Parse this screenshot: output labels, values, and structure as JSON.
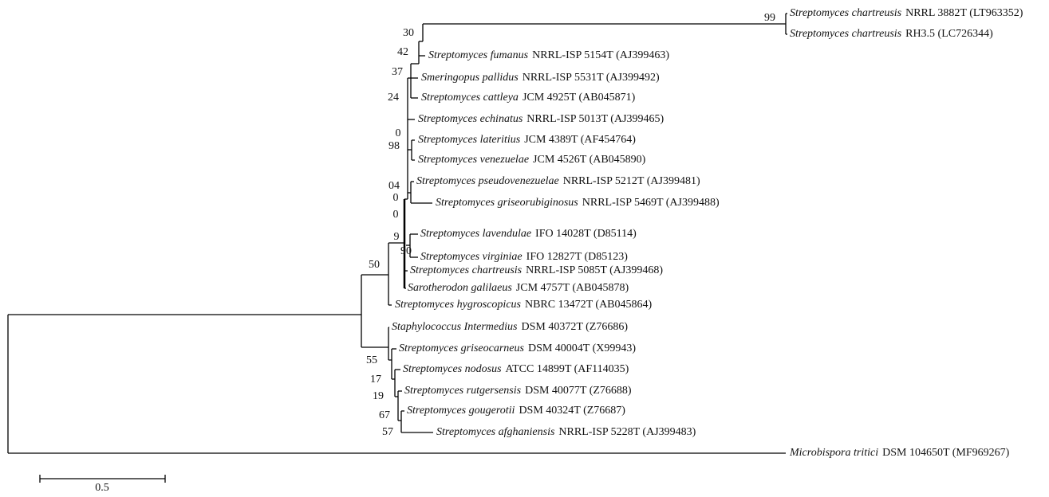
{
  "tree": {
    "leaves": [
      {
        "name": "Streptomyces chartreusis",
        "strain": "NRRL 3882T (LT963352)"
      },
      {
        "name": "Streptomyces chartreusis",
        "strain": "RH3.5 (LC726344)"
      },
      {
        "name": "Streptomyces fumanus",
        "strain": "NRRL-ISP 5154T (AJ399463)"
      },
      {
        "name": "Smeringopus pallidus",
        "strain": "NRRL-ISP 5531T (AJ399492)"
      },
      {
        "name": "Streptomyces cattleya",
        "strain": "JCM 4925T (AB045871)"
      },
      {
        "name": "Streptomyces echinatus",
        "strain": "NRRL-ISP 5013T (AJ399465)"
      },
      {
        "name": "Streptomyces lateritius",
        "strain": "JCM 4389T (AF454764)"
      },
      {
        "name": "Streptomyces venezuelae",
        "strain": "JCM 4526T (AB045890)"
      },
      {
        "name": "Streptomyces pseudovenezuelae",
        "strain": "NRRL-ISP 5212T (AJ399481)"
      },
      {
        "name": "Streptomyces griseorubiginosus",
        "strain": "NRRL-ISP 5469T (AJ399488)"
      },
      {
        "name": "Streptomyces lavendulae",
        "strain": "IFO 14028T (D85114)"
      },
      {
        "name": "Streptomyces virginiae",
        "strain": "IFO 12827T (D85123)"
      },
      {
        "name": "Streptomyces chartreusis",
        "strain": "NRRL-ISP 5085T (AJ399468)"
      },
      {
        "name": "Sarotherodon galilaeus",
        "strain": "JCM 4757T (AB045878)"
      },
      {
        "name": "Streptomyces hygroscopicus",
        "strain": "NBRC 13472T (AB045864)"
      },
      {
        "name": "Staphylococcus Intermedius",
        "strain": "DSM 40372T (Z76686)"
      },
      {
        "name": "Streptomyces griseocarneus",
        "strain": "DSM 40004T (X99943)"
      },
      {
        "name": "Streptomyces nodosus",
        "strain": "ATCC 14899T (AF114035)"
      },
      {
        "name": "Streptomyces rutgersensis",
        "strain": "DSM 40077T (Z76688)"
      },
      {
        "name": "Streptomyces gougerotii",
        "strain": "DSM 40324T (Z76687)"
      },
      {
        "name": "Streptomyces afghaniensis",
        "strain": "NRRL-ISP 5228T (AJ399483)"
      },
      {
        "name": "Microbispora tritici",
        "strain": "DSM 104650T (MF969267)"
      }
    ],
    "bootstraps": [
      "99",
      "30",
      "42",
      "37",
      "24",
      "0",
      "98",
      "04",
      "0",
      "0",
      "9",
      "90",
      "50",
      "55",
      "17",
      "19",
      "67",
      "57"
    ],
    "scale_bar": "0.5"
  }
}
